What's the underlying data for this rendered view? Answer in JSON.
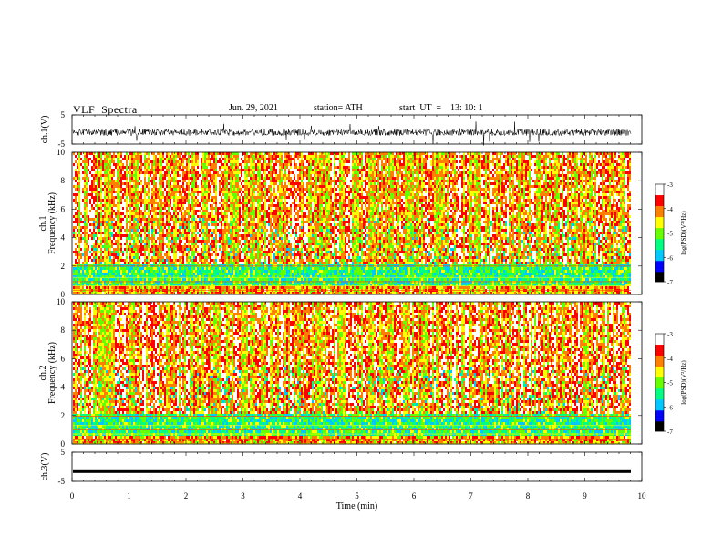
{
  "header": {
    "title": "VLF  Spectra",
    "date": "Jun. 29, 2021",
    "station": "station= ATH",
    "start": "start  UT  =    13: 10: 1"
  },
  "colors": {
    "scale": [
      "#000000",
      "#0000ff",
      "#00c8ff",
      "#00ff80",
      "#66ff00",
      "#ffff00",
      "#ff8000",
      "#ff0000",
      "#ffffff"
    ]
  },
  "chart_data": [
    {
      "type": "line",
      "ylabel": "ch.1(V)",
      "ylim": [
        -5,
        5
      ],
      "yticks": [
        "5",
        "-5"
      ],
      "xlim": [
        0,
        10
      ],
      "description_series": "noisy waveform centered near -1 V"
    },
    {
      "type": "heatmap",
      "ylabel_top": "ch.1",
      "ylabel": "Frequency  (kHz)",
      "ylim": [
        0,
        10
      ],
      "yticks": [
        "0",
        "2",
        "4",
        "6",
        "8",
        "10"
      ],
      "xlim": [
        0,
        10
      ],
      "colorbar": {
        "label": "log(PSD)(V²/Hz)",
        "ticks": [
          "-3",
          "-4",
          "-5",
          "-6",
          "-7"
        ],
        "range": [
          -7,
          -3
        ]
      }
    },
    {
      "type": "heatmap",
      "ylabel_top": "ch.2",
      "ylabel": "Frequency  (kHz)",
      "ylim": [
        0,
        10
      ],
      "yticks": [
        "0",
        "2",
        "4",
        "6",
        "8",
        "10"
      ],
      "xlim": [
        0,
        10
      ],
      "colorbar": {
        "label": "log(PSD)(V²/Hz)",
        "ticks": [
          "-3",
          "-4",
          "-5",
          "-6",
          "-7"
        ],
        "range": [
          -7,
          -3
        ]
      }
    },
    {
      "type": "line",
      "ylabel": "ch.3(V)",
      "ylim": [
        -5,
        5
      ],
      "yticks": [
        "5",
        "-5"
      ],
      "xlim": [
        0,
        10
      ],
      "xlabel": "Time  (min)",
      "xticks": [
        "0",
        "1",
        "2",
        "3",
        "4",
        "5",
        "6",
        "7",
        "8",
        "9",
        "10"
      ]
    }
  ]
}
